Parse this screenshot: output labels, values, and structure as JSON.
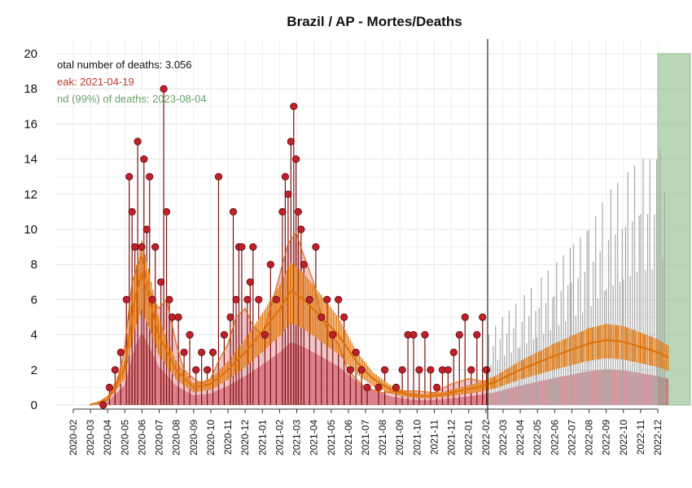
{
  "chart_data": {
    "type": "bar",
    "title": "Brazil / AP - Mortes/Deaths",
    "xlabel": "",
    "ylabel": "",
    "ylim": [
      0,
      20
    ],
    "yticks": [
      0,
      2,
      4,
      6,
      8,
      10,
      12,
      14,
      16,
      18,
      20
    ],
    "xtick_labels": [
      "2020-02",
      "2020-03",
      "2020-04",
      "2020-05",
      "2020-06",
      "2020-07",
      "2020-08",
      "2020-09",
      "2020-10",
      "2020-11",
      "2020-12",
      "2021-01",
      "2021-02",
      "2021-03",
      "2021-04",
      "2021-05",
      "2021-06",
      "2021-07",
      "2021-08",
      "2021-09",
      "2021-10",
      "2021-11",
      "2021-12",
      "2022-01",
      "2022-02",
      "2022-03",
      "2022-04",
      "2022-05",
      "2022-06",
      "2022-07",
      "2022-08",
      "2022-09",
      "2022-10",
      "2022-11",
      "2022-12"
    ],
    "grid": true,
    "annotations": {
      "total": "otal number of deaths: 3.056",
      "peak": "eak: 2021-04-19",
      "end": "nd (99%) of deaths: 2023-08-04"
    },
    "current_date": "2022-02-03",
    "end_region_start": "2022-12-01",
    "series": [
      {
        "role": "observed daily deaths",
        "points": [
          [
            "2020-03-25",
            0
          ],
          [
            "2020-04-05",
            1
          ],
          [
            "2020-04-15",
            2
          ],
          [
            "2020-04-25",
            3
          ],
          [
            "2020-05-05",
            6
          ],
          [
            "2020-05-10",
            13
          ],
          [
            "2020-05-15",
            11
          ],
          [
            "2020-05-20",
            9
          ],
          [
            "2020-05-25",
            15
          ],
          [
            "2020-06-01",
            9
          ],
          [
            "2020-06-05",
            14
          ],
          [
            "2020-06-10",
            10
          ],
          [
            "2020-06-15",
            13
          ],
          [
            "2020-06-20",
            6
          ],
          [
            "2020-06-25",
            9
          ],
          [
            "2020-07-05",
            7
          ],
          [
            "2020-07-10",
            18
          ],
          [
            "2020-07-15",
            11
          ],
          [
            "2020-07-20",
            6
          ],
          [
            "2020-07-25",
            5
          ],
          [
            "2020-08-05",
            5
          ],
          [
            "2020-08-15",
            3
          ],
          [
            "2020-08-25",
            4
          ],
          [
            "2020-09-05",
            2
          ],
          [
            "2020-09-15",
            3
          ],
          [
            "2020-09-25",
            2
          ],
          [
            "2020-10-05",
            3
          ],
          [
            "2020-10-15",
            13
          ],
          [
            "2020-10-25",
            4
          ],
          [
            "2020-11-05",
            5
          ],
          [
            "2020-11-10",
            11
          ],
          [
            "2020-11-15",
            6
          ],
          [
            "2020-11-20",
            9
          ],
          [
            "2020-11-25",
            9
          ],
          [
            "2020-12-05",
            6
          ],
          [
            "2020-12-10",
            7
          ],
          [
            "2020-12-15",
            9
          ],
          [
            "2020-12-25",
            6
          ],
          [
            "2021-01-05",
            4
          ],
          [
            "2021-01-15",
            8
          ],
          [
            "2021-01-25",
            6
          ],
          [
            "2021-02-05",
            11
          ],
          [
            "2021-02-10",
            13
          ],
          [
            "2021-02-15",
            12
          ],
          [
            "2021-02-20",
            15
          ],
          [
            "2021-02-25",
            17
          ],
          [
            "2021-03-01",
            14
          ],
          [
            "2021-03-05",
            11
          ],
          [
            "2021-03-10",
            10
          ],
          [
            "2021-03-15",
            8
          ],
          [
            "2021-03-25",
            6
          ],
          [
            "2021-04-05",
            9
          ],
          [
            "2021-04-15",
            5
          ],
          [
            "2021-04-25",
            6
          ],
          [
            "2021-05-05",
            4
          ],
          [
            "2021-05-15",
            6
          ],
          [
            "2021-05-25",
            5
          ],
          [
            "2021-06-05",
            2
          ],
          [
            "2021-06-15",
            3
          ],
          [
            "2021-06-25",
            2
          ],
          [
            "2021-07-05",
            1
          ],
          [
            "2021-07-25",
            1
          ],
          [
            "2021-08-05",
            2
          ],
          [
            "2021-08-25",
            1
          ],
          [
            "2021-09-05",
            2
          ],
          [
            "2021-09-15",
            4
          ],
          [
            "2021-09-25",
            4
          ],
          [
            "2021-10-05",
            2
          ],
          [
            "2021-10-15",
            4
          ],
          [
            "2021-10-25",
            2
          ],
          [
            "2021-11-05",
            1
          ],
          [
            "2021-11-15",
            2
          ],
          [
            "2021-11-25",
            2
          ],
          [
            "2021-12-05",
            3
          ],
          [
            "2021-12-15",
            4
          ],
          [
            "2021-12-25",
            5
          ],
          [
            "2022-01-05",
            2
          ],
          [
            "2022-01-15",
            4
          ],
          [
            "2022-01-25",
            5
          ],
          [
            "2022-02-01",
            2
          ]
        ]
      },
      {
        "role": "moving average",
        "points": [
          [
            "2020-03-15",
            0.1
          ],
          [
            "2020-04-15",
            0.8
          ],
          [
            "2020-05-01",
            3
          ],
          [
            "2020-05-15",
            7
          ],
          [
            "2020-06-01",
            8.5
          ],
          [
            "2020-06-15",
            6.5
          ],
          [
            "2020-07-01",
            5.5
          ],
          [
            "2020-07-15",
            6
          ],
          [
            "2020-08-01",
            3.5
          ],
          [
            "2020-08-15",
            2
          ],
          [
            "2020-09-01",
            1.5
          ],
          [
            "2020-09-15",
            1.2
          ],
          [
            "2020-10-01",
            1.5
          ],
          [
            "2020-10-15",
            2.5
          ],
          [
            "2020-11-01",
            3.5
          ],
          [
            "2020-11-15",
            5
          ],
          [
            "2020-12-01",
            5.5
          ],
          [
            "2020-12-15",
            4.5
          ],
          [
            "2021-01-01",
            4
          ],
          [
            "2021-01-15",
            5.5
          ],
          [
            "2021-02-01",
            7.5
          ],
          [
            "2021-02-15",
            9.2
          ],
          [
            "2021-03-01",
            9.8
          ],
          [
            "2021-03-15",
            8.5
          ],
          [
            "2021-04-01",
            7
          ],
          [
            "2021-04-15",
            5
          ],
          [
            "2021-05-01",
            4
          ],
          [
            "2021-05-15",
            3.5
          ],
          [
            "2021-06-01",
            2
          ],
          [
            "2021-06-15",
            1.5
          ],
          [
            "2021-07-01",
            1
          ],
          [
            "2021-08-01",
            0.7
          ],
          [
            "2021-09-01",
            0.8
          ],
          [
            "2021-10-01",
            0.8
          ],
          [
            "2021-11-01",
            0.7
          ],
          [
            "2021-12-01",
            1.2
          ],
          [
            "2022-01-01",
            1.5
          ],
          [
            "2022-02-01",
            1.3
          ]
        ]
      },
      {
        "role": "fitted curve",
        "points": [
          [
            "2020-03-01",
            0
          ],
          [
            "2020-04-01",
            0.3
          ],
          [
            "2020-05-01",
            2
          ],
          [
            "2020-05-20",
            6
          ],
          [
            "2020-06-01",
            7.5
          ],
          [
            "2020-06-15",
            6
          ],
          [
            "2020-07-01",
            4
          ],
          [
            "2020-08-01",
            2
          ],
          [
            "2020-09-01",
            1
          ],
          [
            "2020-10-01",
            1.2
          ],
          [
            "2020-11-01",
            2
          ],
          [
            "2020-12-01",
            3
          ],
          [
            "2021-01-01",
            4.2
          ],
          [
            "2021-02-01",
            5.5
          ],
          [
            "2021-02-20",
            6.5
          ],
          [
            "2021-03-15",
            6
          ],
          [
            "2021-04-15",
            5
          ],
          [
            "2021-05-15",
            4
          ],
          [
            "2021-06-15",
            2.5
          ],
          [
            "2021-07-15",
            1.5
          ],
          [
            "2021-08-15",
            0.9
          ],
          [
            "2021-09-15",
            0.6
          ],
          [
            "2021-10-15",
            0.5
          ],
          [
            "2021-11-15",
            0.6
          ],
          [
            "2021-12-15",
            0.8
          ],
          [
            "2022-01-15",
            1
          ],
          [
            "2022-02-15",
            1.3
          ],
          [
            "2022-04-01",
            2
          ],
          [
            "2022-06-01",
            2.8
          ],
          [
            "2022-08-01",
            3.5
          ],
          [
            "2022-09-01",
            3.7
          ],
          [
            "2022-10-01",
            3.6
          ],
          [
            "2022-11-01",
            3.3
          ],
          [
            "2022-12-01",
            3
          ],
          [
            "2022-12-20",
            2.7
          ]
        ]
      },
      {
        "role": "projected cumulative range",
        "points": [
          [
            "2022-02-05",
            4
          ],
          [
            "2022-03-01",
            5
          ],
          [
            "2022-04-01",
            6
          ],
          [
            "2022-05-01",
            7
          ],
          [
            "2022-06-01",
            8
          ],
          [
            "2022-07-01",
            9
          ],
          [
            "2022-08-01",
            10
          ],
          [
            "2022-09-01",
            12
          ],
          [
            "2022-10-01",
            13
          ],
          [
            "2022-11-01",
            14
          ],
          [
            "2022-12-01",
            14
          ],
          [
            "2022-12-15",
            16
          ]
        ]
      }
    ]
  }
}
